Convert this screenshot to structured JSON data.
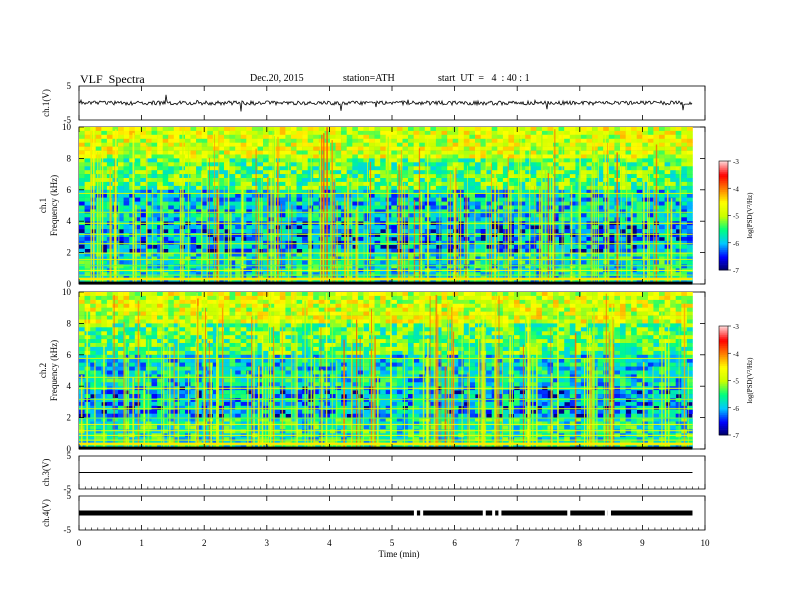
{
  "header": {
    "title": "VLF  Spectra",
    "date": "Dec.20, 2015",
    "station": "station=ATH",
    "start": "start  UT  =   4  : 40 : 1"
  },
  "chart_data": [
    {
      "type": "line",
      "panel": "ch1-waveform",
      "ylabel": "ch.1(V)",
      "yticks": [
        "5",
        "-5"
      ],
      "ylim": [
        -5,
        5
      ],
      "series": [
        {
          "approx_level": 0,
          "description_note": ""
        }
      ]
    },
    {
      "type": "heatmap",
      "panel": "ch1-spectrogram",
      "ylabel_lines": [
        "ch.1",
        "Frequency  (kHz)"
      ],
      "yticks": [
        "0",
        "2",
        "4",
        "6",
        "8",
        "10"
      ],
      "ylim": [
        0,
        10
      ],
      "xlim": [
        0,
        10
      ],
      "colorbar": {
        "label": "log(PSD(V²/Hz)",
        "ticks": [
          "-3",
          "-4",
          "-5",
          "-6",
          "-7"
        ],
        "range": [
          -7,
          -3
        ]
      }
    },
    {
      "type": "heatmap",
      "panel": "ch2-spectrogram",
      "ylabel_lines": [
        "ch.2",
        "Frequency  (kHz)"
      ],
      "yticks": [
        "0",
        "2",
        "4",
        "6",
        "8",
        "10"
      ],
      "ylim": [
        0,
        10
      ],
      "xlim": [
        0,
        10
      ],
      "colorbar": {
        "label": "log(PSD(V²/Hz)",
        "ticks": [
          "-3",
          "-4",
          "-5",
          "-6",
          "-7"
        ],
        "range": [
          -7,
          -3
        ]
      }
    },
    {
      "type": "line",
      "panel": "ch3-waveform",
      "ylabel": "ch.3(V)",
      "yticks": [
        "5",
        "-5"
      ],
      "ylim": [
        -5,
        5
      ],
      "level": 0
    },
    {
      "type": "line",
      "panel": "ch4-waveform",
      "ylabel": "ch.4(V)",
      "yticks": [
        "5",
        "-5"
      ],
      "ylim": [
        -5,
        5
      ],
      "level": 0
    },
    {
      "type": "axis",
      "panel": "time-axis",
      "xlabel": "Time  (min)",
      "xticks": [
        "0",
        "1",
        "2",
        "3",
        "4",
        "5",
        "6",
        "7",
        "8",
        "9",
        "10"
      ],
      "xlim": [
        0,
        10
      ],
      "data_end": 9.8
    }
  ],
  "colors": {
    "colormap": [
      "#000060",
      "#0000ff",
      "#00c8ff",
      "#00ff80",
      "#c8ff00",
      "#ffff00",
      "#ff8000",
      "#ff0000",
      "#ffd0d0"
    ],
    "trace": "#000000"
  }
}
